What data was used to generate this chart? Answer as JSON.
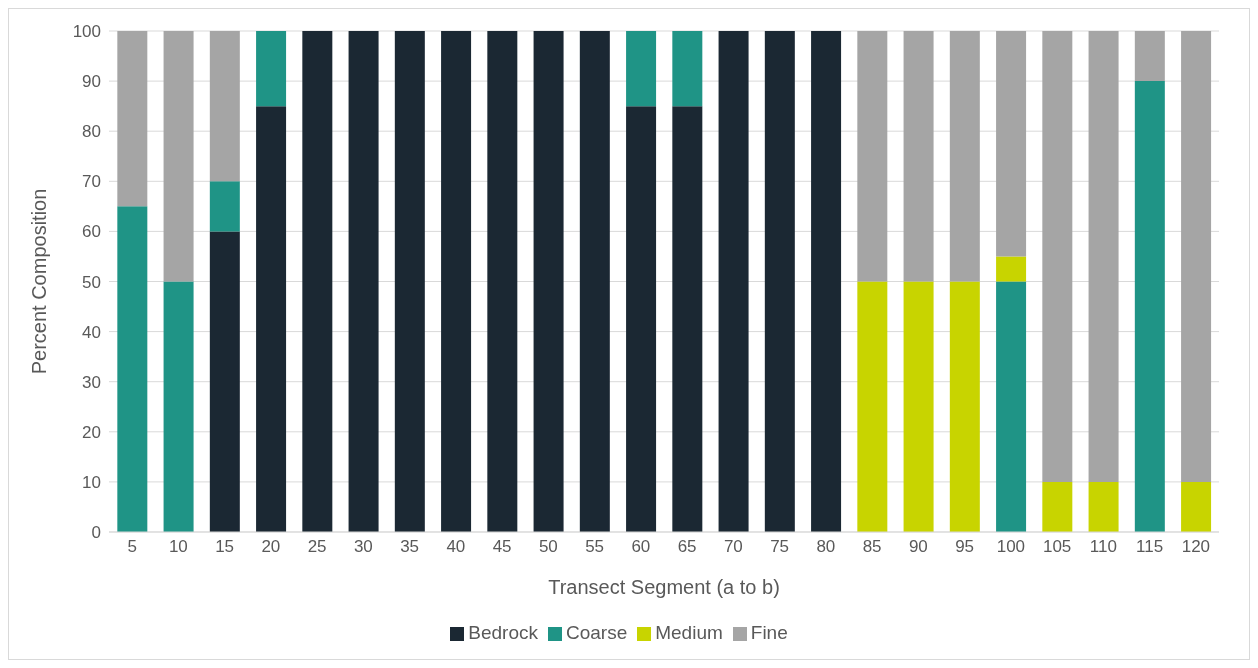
{
  "chart_data": {
    "type": "bar",
    "stacked": true,
    "xlabel": "Transect Segment (a to b)",
    "ylabel": "Percent Composition",
    "categories": [
      "5",
      "10",
      "15",
      "20",
      "25",
      "30",
      "35",
      "40",
      "45",
      "50",
      "55",
      "60",
      "65",
      "70",
      "75",
      "80",
      "85",
      "90",
      "95",
      "100",
      "105",
      "110",
      "115",
      "120"
    ],
    "series": [
      {
        "name": "Bedrock",
        "color": "#1b2833",
        "values": [
          0,
          0,
          60,
          85,
          100,
          100,
          100,
          100,
          100,
          100,
          100,
          85,
          85,
          100,
          100,
          100,
          0,
          0,
          0,
          0,
          0,
          0,
          0,
          0
        ]
      },
      {
        "name": "Coarse",
        "color": "#1f9486",
        "values": [
          65,
          50,
          10,
          15,
          0,
          0,
          0,
          0,
          0,
          0,
          0,
          15,
          15,
          0,
          0,
          0,
          0,
          0,
          0,
          50,
          0,
          0,
          90,
          0
        ]
      },
      {
        "name": "Medium",
        "color": "#c8d400",
        "values": [
          0,
          0,
          0,
          0,
          0,
          0,
          0,
          0,
          0,
          0,
          0,
          0,
          0,
          0,
          0,
          0,
          50,
          50,
          50,
          5,
          10,
          10,
          0,
          10
        ]
      },
      {
        "name": "Fine",
        "color": "#a5a5a5",
        "values": [
          35,
          50,
          30,
          0,
          0,
          0,
          0,
          0,
          0,
          0,
          0,
          0,
          0,
          0,
          0,
          0,
          50,
          50,
          50,
          45,
          90,
          90,
          10,
          90
        ]
      }
    ],
    "ylim": [
      0,
      100
    ],
    "yticks": [
      0,
      10,
      20,
      30,
      40,
      50,
      60,
      70,
      80,
      90,
      100
    ],
    "grid": "y",
    "legend": "bottom"
  }
}
